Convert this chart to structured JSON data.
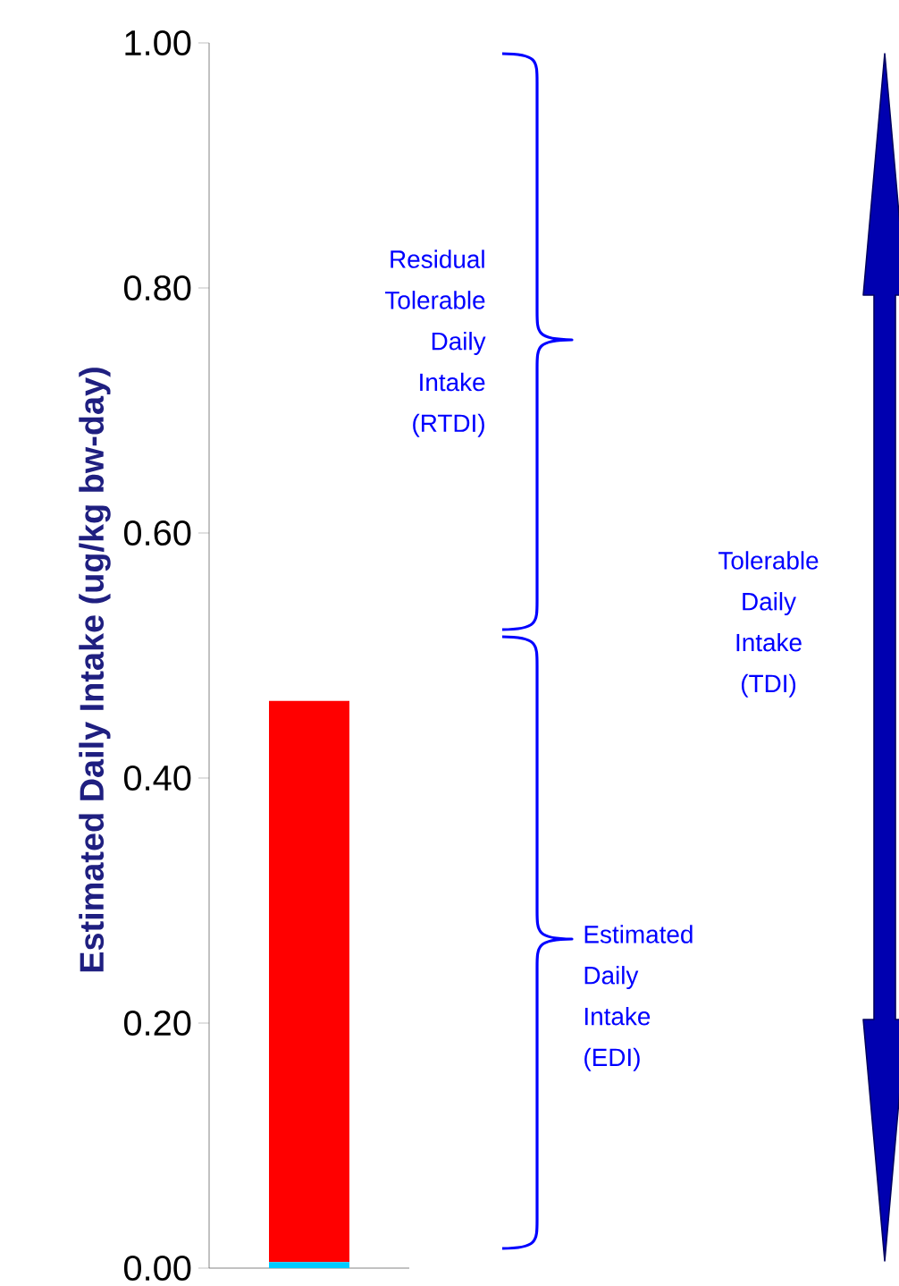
{
  "chart_data": {
    "type": "bar",
    "stacked": true,
    "ylabel": "Estimated Daily Intake (ug/kg bw-day)",
    "categories": [
      null
    ],
    "series": [
      {
        "color": "#00ccff",
        "values": [
          0.005
        ]
      },
      {
        "color": "#ff0000",
        "values": [
          0.458
        ]
      }
    ],
    "ylim": [
      0,
      1
    ],
    "yticks": [
      {
        "value": 0,
        "label": "0.00"
      },
      {
        "value": 0.2,
        "label": "0.20"
      },
      {
        "value": 0.4,
        "label": "0.40"
      },
      {
        "value": 0.6,
        "label": "0.60"
      },
      {
        "value": 0.8,
        "label": "0.80"
      },
      {
        "value": 1,
        "label": "1.00"
      }
    ],
    "annotations": [
      "Residual Tolerable Daily Intake (RTDI)",
      "Tolerable Daily Intake (TDI)",
      "Estimated Daily Intake (EDI)"
    ]
  }
}
